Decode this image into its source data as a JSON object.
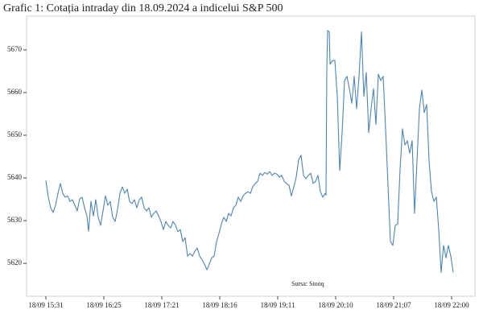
{
  "chart_data": {
    "type": "line",
    "title": "Grafic 1: Cotația intraday din 18.09.2024 a indicelui S&P 500",
    "annotation": "Sursa: Stooq",
    "x": [
      0,
      3,
      6,
      9,
      12,
      15,
      18,
      21,
      24,
      27,
      30,
      33,
      36,
      39,
      42,
      45,
      48,
      51,
      53,
      56,
      59,
      62,
      65,
      68,
      71,
      74,
      77,
      80,
      83,
      86,
      89,
      92,
      95,
      98,
      101,
      104,
      107,
      110,
      113,
      116,
      119,
      122,
      125,
      128,
      131,
      134,
      137,
      140,
      143,
      146,
      149,
      152,
      155,
      158,
      161,
      164,
      167,
      170,
      173,
      176,
      179,
      182,
      185,
      188,
      191,
      194,
      197,
      200,
      203,
      206,
      209,
      212,
      215,
      218,
      221,
      224,
      227,
      230,
      233,
      236,
      239,
      242,
      245,
      248,
      251,
      254,
      257,
      260,
      263,
      266,
      269,
      272,
      275,
      278,
      281,
      284,
      287,
      290,
      293,
      296,
      299,
      302,
      305,
      308,
      311,
      314,
      317,
      320,
      323,
      326,
      329,
      332,
      335,
      338,
      341,
      344,
      347,
      348,
      349,
      350,
      352,
      353,
      356,
      359,
      362,
      365,
      368,
      371,
      374,
      377,
      380,
      383,
      386,
      389,
      392,
      395,
      398,
      401,
      404,
      407,
      410,
      413,
      416,
      419,
      422,
      425,
      428,
      431,
      434,
      437,
      440,
      443,
      446,
      449,
      452,
      455,
      458,
      461,
      464,
      467,
      470,
      473,
      476,
      479,
      482,
      485,
      488,
      491,
      494,
      497,
      500,
      503,
      506
    ],
    "series": [
      {
        "name": "S&P 500",
        "color": "#4a86b8",
        "values": [
          5639.4,
          5635.5,
          5633.0,
          5631.9,
          5633.6,
          5636.4,
          5638.7,
          5636.4,
          5635.5,
          5635.8,
          5634.5,
          5634.9,
          5633.6,
          5632.3,
          5635.1,
          5635.5,
          5633.0,
          5631.1,
          5627.5,
          5634.5,
          5631.1,
          5634.9,
          5630.8,
          5628.9,
          5632.3,
          5635.8,
          5633.6,
          5634.5,
          5630.8,
          5629.8,
          5632.6,
          5636.4,
          5637.9,
          5636.4,
          5637.4,
          5634.5,
          5634.0,
          5634.9,
          5633.0,
          5634.9,
          5635.5,
          5633.0,
          5632.3,
          5633.0,
          5630.8,
          5631.7,
          5632.3,
          5631.1,
          5629.8,
          5627.9,
          5629.8,
          5628.9,
          5628.3,
          5629.8,
          5628.9,
          5627.4,
          5627.9,
          5625.1,
          5626.0,
          5621.7,
          5622.3,
          5621.7,
          5622.8,
          5623.6,
          5621.7,
          5620.9,
          5619.8,
          5618.5,
          5619.8,
          5621.3,
          5621.7,
          5625.1,
          5627.0,
          5629.2,
          5630.8,
          5629.8,
          5631.7,
          5631.1,
          5633.0,
          5633.6,
          5635.5,
          5634.5,
          5635.8,
          5636.4,
          5636.8,
          5636.4,
          5637.9,
          5638.7,
          5639.2,
          5641.1,
          5640.6,
          5641.3,
          5640.9,
          5641.5,
          5640.6,
          5641.1,
          5640.9,
          5640.2,
          5640.6,
          5639.2,
          5638.7,
          5638.3,
          5635.8,
          5637.9,
          5640.2,
          5644.3,
          5645.3,
          5640.6,
          5639.8,
          5640.6,
          5641.1,
          5638.7,
          5639.2,
          5640.6,
          5636.8,
          5635.5,
          5636.4,
          5636.0,
          5665.7,
          5674.5,
          5674.2,
          5666.6,
          5667.5,
          5667.5,
          5659.1,
          5641.7,
          5650.6,
          5662.8,
          5663.8,
          5660.9,
          5657.5,
          5663.8,
          5656.2,
          5663.8,
          5674.2,
          5659.1,
          5664.7,
          5650.6,
          5656.2,
          5660.9,
          5652.5,
          5664.3,
          5662.8,
          5663.8,
          5651.5,
          5638.3,
          5625.1,
          5624.2,
          5628.9,
          5629.2,
          5642.1,
          5651.5,
          5647.7,
          5648.7,
          5645.8,
          5648.7,
          5631.7,
          5644.0,
          5656.2,
          5660.6,
          5655.3,
          5657.2,
          5644.0,
          5636.8,
          5634.5,
          5635.5,
          5627.9,
          5617.9,
          5624.2,
          5621.3,
          5624.2,
          5621.7,
          5617.9
        ]
      }
    ],
    "xlim": [
      -24,
      533
    ],
    "xticks": [
      {
        "value": 0,
        "label": "18/09 15:31"
      },
      {
        "value": 72,
        "label": "18/09 16:25"
      },
      {
        "value": 144,
        "label": "18/09 17:21"
      },
      {
        "value": 216,
        "label": "18/09 18:16"
      },
      {
        "value": 288,
        "label": "18/09 19:11"
      },
      {
        "value": 360,
        "label": "18/09 20:10"
      },
      {
        "value": 432,
        "label": "18/09 21:07"
      },
      {
        "value": 504,
        "label": "18/09 22:00"
      }
    ],
    "ylim": [
      5612.3,
      5677.9
    ],
    "yticks": [
      5620,
      5630,
      5640,
      5650,
      5660,
      5670
    ],
    "grid": false
  }
}
